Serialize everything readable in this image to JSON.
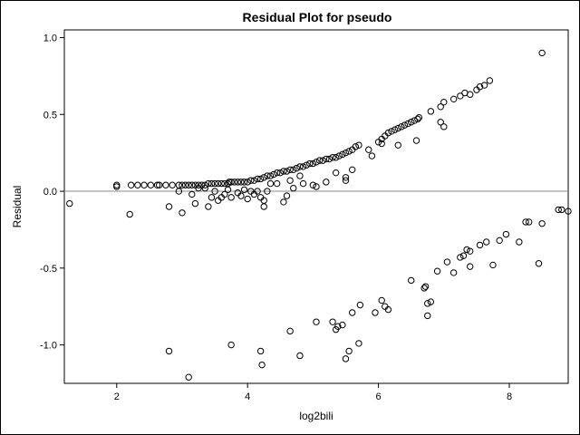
{
  "chart_data": {
    "type": "scatter",
    "title": "Residual Plot for pseudo",
    "xlabel": "log2bili",
    "ylabel": "Residual",
    "xlim": [
      1.2,
      8.9
    ],
    "ylim": [
      -1.25,
      1.05
    ],
    "xticks": [
      "2",
      "4",
      "6",
      "8"
    ],
    "yticks": [
      "1.0",
      "0.5",
      "0.0",
      "-0.5",
      "-1.0"
    ],
    "reference_line_y": 0,
    "grid": false,
    "marker": "open-circle",
    "colors": {
      "marker": "#000000",
      "reference_line": "#888888",
      "frame": "#000000"
    },
    "points": [
      [
        1.28,
        -0.08
      ],
      [
        2.0,
        0.04
      ],
      [
        2.0,
        0.03
      ],
      [
        2.22,
        0.04
      ],
      [
        2.32,
        0.04
      ],
      [
        2.42,
        0.04
      ],
      [
        2.52,
        0.04
      ],
      [
        2.62,
        0.04
      ],
      [
        2.65,
        0.04
      ],
      [
        2.75,
        0.04
      ],
      [
        2.85,
        0.04
      ],
      [
        2.95,
        0.04
      ],
      [
        3.0,
        0.04
      ],
      [
        3.05,
        0.04
      ],
      [
        3.1,
        0.04
      ],
      [
        3.15,
        0.04
      ],
      [
        3.2,
        0.04
      ],
      [
        3.25,
        0.04
      ],
      [
        3.3,
        0.04
      ],
      [
        3.35,
        0.04
      ],
      [
        3.4,
        0.05
      ],
      [
        3.45,
        0.05
      ],
      [
        3.5,
        0.05
      ],
      [
        3.55,
        0.05
      ],
      [
        3.6,
        0.05
      ],
      [
        3.65,
        0.05
      ],
      [
        3.7,
        0.05
      ],
      [
        3.72,
        0.06
      ],
      [
        3.75,
        0.06
      ],
      [
        3.8,
        0.06
      ],
      [
        3.85,
        0.06
      ],
      [
        3.9,
        0.06
      ],
      [
        3.95,
        0.06
      ],
      [
        4.0,
        0.06
      ],
      [
        4.05,
        0.07
      ],
      [
        4.1,
        0.07
      ],
      [
        4.15,
        0.08
      ],
      [
        4.2,
        0.08
      ],
      [
        4.25,
        0.09
      ],
      [
        4.3,
        0.1
      ],
      [
        4.35,
        0.1
      ],
      [
        4.4,
        0.11
      ],
      [
        4.45,
        0.12
      ],
      [
        4.5,
        0.12
      ],
      [
        4.55,
        0.13
      ],
      [
        4.6,
        0.13
      ],
      [
        4.65,
        0.14
      ],
      [
        4.7,
        0.14
      ],
      [
        4.75,
        0.15
      ],
      [
        4.8,
        0.16
      ],
      [
        4.85,
        0.16
      ],
      [
        4.9,
        0.17
      ],
      [
        4.95,
        0.18
      ],
      [
        5.0,
        0.18
      ],
      [
        5.05,
        0.19
      ],
      [
        5.1,
        0.2
      ],
      [
        5.15,
        0.2
      ],
      [
        5.2,
        0.21
      ],
      [
        5.25,
        0.21
      ],
      [
        5.3,
        0.22
      ],
      [
        5.35,
        0.22
      ],
      [
        5.4,
        0.23
      ],
      [
        5.45,
        0.24
      ],
      [
        5.5,
        0.25
      ],
      [
        5.55,
        0.26
      ],
      [
        5.6,
        0.27
      ],
      [
        5.65,
        0.29
      ],
      [
        5.7,
        0.3
      ],
      [
        5.85,
        0.27
      ],
      [
        6.0,
        0.32
      ],
      [
        6.05,
        0.34
      ],
      [
        6.1,
        0.36
      ],
      [
        6.15,
        0.38
      ],
      [
        6.2,
        0.39
      ],
      [
        6.25,
        0.4
      ],
      [
        6.3,
        0.41
      ],
      [
        6.35,
        0.42
      ],
      [
        6.4,
        0.43
      ],
      [
        6.45,
        0.44
      ],
      [
        6.5,
        0.45
      ],
      [
        6.55,
        0.46
      ],
      [
        6.6,
        0.47
      ],
      [
        6.62,
        0.48
      ],
      [
        6.8,
        0.52
      ],
      [
        6.95,
        0.55
      ],
      [
        7.0,
        0.58
      ],
      [
        7.15,
        0.6
      ],
      [
        7.25,
        0.62
      ],
      [
        7.32,
        0.64
      ],
      [
        7.4,
        0.63
      ],
      [
        7.5,
        0.66
      ],
      [
        7.55,
        0.68
      ],
      [
        7.62,
        0.69
      ],
      [
        7.7,
        0.72
      ],
      [
        8.5,
        0.9
      ],
      [
        2.2,
        -0.15
      ],
      [
        2.8,
        -0.1
      ],
      [
        2.95,
        0.0
      ],
      [
        3.0,
        -0.14
      ],
      [
        3.15,
        -0.02
      ],
      [
        3.2,
        -0.08
      ],
      [
        3.25,
        0.02
      ],
      [
        3.35,
        0.02
      ],
      [
        3.4,
        -0.1
      ],
      [
        3.45,
        -0.04
      ],
      [
        3.5,
        0.0
      ],
      [
        3.55,
        -0.06
      ],
      [
        3.6,
        -0.04
      ],
      [
        3.65,
        -0.02
      ],
      [
        3.7,
        0.01
      ],
      [
        3.75,
        -0.04
      ],
      [
        3.85,
        -0.01
      ],
      [
        3.9,
        -0.03
      ],
      [
        3.95,
        0.01
      ],
      [
        4.0,
        -0.05
      ],
      [
        4.05,
        0.0
      ],
      [
        4.1,
        -0.02
      ],
      [
        4.15,
        0.0
      ],
      [
        4.2,
        -0.04
      ],
      [
        4.25,
        -0.1
      ],
      [
        4.25,
        -0.06
      ],
      [
        4.3,
        0.0
      ],
      [
        4.35,
        0.05
      ],
      [
        4.45,
        0.05
      ],
      [
        4.55,
        -0.07
      ],
      [
        4.6,
        -0.03
      ],
      [
        4.65,
        0.07
      ],
      [
        4.7,
        0.02
      ],
      [
        4.8,
        0.1
      ],
      [
        4.85,
        0.05
      ],
      [
        5.0,
        0.04
      ],
      [
        5.05,
        0.03
      ],
      [
        5.2,
        0.06
      ],
      [
        5.35,
        0.12
      ],
      [
        5.5,
        0.07
      ],
      [
        5.5,
        0.09
      ],
      [
        5.6,
        0.14
      ],
      [
        5.9,
        0.23
      ],
      [
        6.05,
        0.31
      ],
      [
        6.3,
        0.3
      ],
      [
        6.58,
        0.33
      ],
      [
        6.95,
        0.45
      ],
      [
        7.0,
        0.42
      ],
      [
        2.8,
        -1.04
      ],
      [
        3.1,
        -1.21
      ],
      [
        3.75,
        -1.0
      ],
      [
        4.2,
        -1.04
      ],
      [
        4.22,
        -1.13
      ],
      [
        4.65,
        -0.91
      ],
      [
        4.8,
        -1.07
      ],
      [
        5.05,
        -0.85
      ],
      [
        5.3,
        -0.85
      ],
      [
        5.35,
        -0.9
      ],
      [
        5.38,
        -0.88
      ],
      [
        5.45,
        -0.87
      ],
      [
        5.5,
        -1.09
      ],
      [
        5.55,
        -1.04
      ],
      [
        5.6,
        -0.79
      ],
      [
        5.7,
        -0.99
      ],
      [
        5.72,
        -0.74
      ],
      [
        5.95,
        -0.79
      ],
      [
        6.05,
        -0.71
      ],
      [
        6.1,
        -0.75
      ],
      [
        6.15,
        -0.77
      ],
      [
        6.5,
        -0.58
      ],
      [
        6.7,
        -0.63
      ],
      [
        6.72,
        -0.62
      ],
      [
        6.75,
        -0.73
      ],
      [
        6.75,
        -0.81
      ],
      [
        6.8,
        -0.72
      ],
      [
        6.9,
        -0.52
      ],
      [
        7.05,
        -0.46
      ],
      [
        7.15,
        -0.53
      ],
      [
        7.25,
        -0.43
      ],
      [
        7.3,
        -0.42
      ],
      [
        7.35,
        -0.38
      ],
      [
        7.4,
        -0.39
      ],
      [
        7.4,
        -0.49
      ],
      [
        7.55,
        -0.35
      ],
      [
        7.65,
        -0.33
      ],
      [
        7.75,
        -0.48
      ],
      [
        7.85,
        -0.32
      ],
      [
        7.95,
        -0.28
      ],
      [
        8.15,
        -0.33
      ],
      [
        8.25,
        -0.2
      ],
      [
        8.3,
        -0.2
      ],
      [
        8.45,
        -0.47
      ],
      [
        8.5,
        -0.21
      ],
      [
        8.75,
        -0.12
      ],
      [
        8.8,
        -0.12
      ],
      [
        8.9,
        -0.13
      ]
    ]
  }
}
